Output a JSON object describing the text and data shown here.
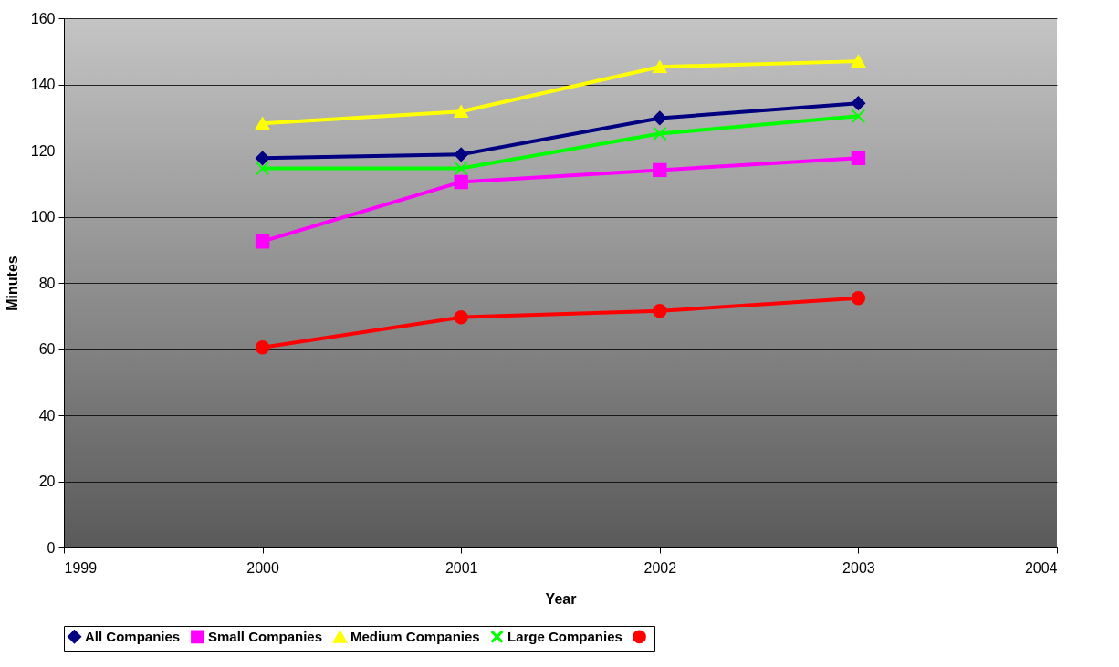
{
  "chart_data": {
    "type": "line",
    "xlabel": "Year",
    "ylabel": "Minutes",
    "x": [
      2000,
      2001,
      2002,
      2003
    ],
    "xlim": [
      1999,
      2004
    ],
    "xticks": [
      1999,
      2000,
      2001,
      2002,
      2003,
      2004
    ],
    "ylim": [
      0,
      160
    ],
    "yticks": [
      0,
      20,
      40,
      60,
      80,
      100,
      120,
      140,
      160
    ],
    "grid": "y",
    "legend": "bottom",
    "line_style": "solid",
    "series": [
      {
        "name": "All Companies",
        "color": "#000080",
        "marker": "diamond",
        "values": [
          117.7,
          118.8,
          129.8,
          134.3
        ]
      },
      {
        "name": "Small Companies",
        "color": "#ff00ff",
        "marker": "square",
        "values": [
          92.5,
          110.5,
          114.1,
          117.7
        ]
      },
      {
        "name": "Medium Companies",
        "color": "#ffff00",
        "marker": "triangle",
        "values": [
          128.2,
          131.8,
          145.3,
          147
        ]
      },
      {
        "name": "Large Companies",
        "color": "#00ff00",
        "marker": "cross",
        "values": [
          114.6,
          114.6,
          125.1,
          130.4
        ]
      },
      {
        "color": "#ff0000",
        "marker": "circle",
        "values": [
          60.5,
          69.6,
          71.5,
          75.4
        ]
      }
    ]
  }
}
